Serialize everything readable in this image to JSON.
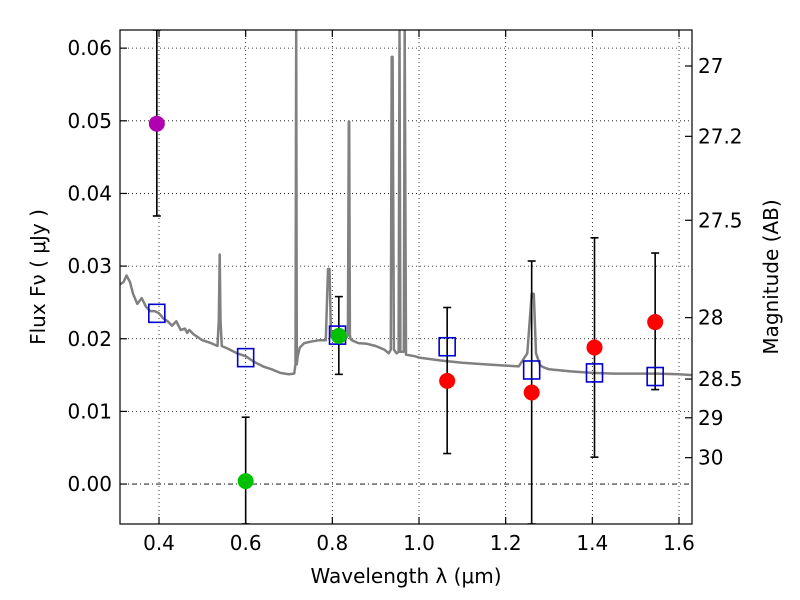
{
  "chart_data": {
    "type": "scatter",
    "xlabel": "Wavelength  λ (μm)",
    "ylabel": "Flux  Fν  ( μJy )",
    "ylabel_right": "Magnitude (AB)",
    "xlim": [
      0.31,
      1.63
    ],
    "ylim": [
      -0.0055,
      0.0625
    ],
    "grid": true,
    "x_ticks": [
      0.4,
      0.6,
      0.8,
      1.0,
      1.2,
      1.4,
      1.6
    ],
    "x_tick_labels": [
      "0.4",
      "0.6",
      "0.8",
      "1.0",
      "1.2",
      "1.4",
      "1.6"
    ],
    "y_ticks": [
      0.0,
      0.01,
      0.02,
      0.03,
      0.04,
      0.05,
      0.06
    ],
    "y_tick_labels": [
      "0.00",
      "0.01",
      "0.02",
      "0.03",
      "0.04",
      "0.05",
      "0.06"
    ],
    "mag_ticks": [
      27,
      27.2,
      27.5,
      28,
      28.5,
      29,
      30
    ],
    "mag_tick_labels": [
      "27",
      "27.2",
      "27.5",
      "28",
      "28.5",
      "29",
      "30"
    ],
    "mag_zero_point": 23.9,
    "colors": {
      "sed": "#808080",
      "magenta": "#b000b0",
      "green": "#00c000",
      "red": "#ff0000",
      "model_box": "#0000d0",
      "errorbar": "#000000",
      "zero_line": "#000000"
    },
    "sed_model": {
      "x": [
        0.31,
        0.318,
        0.325,
        0.333,
        0.34,
        0.35,
        0.36,
        0.37,
        0.38,
        0.39,
        0.4,
        0.41,
        0.42,
        0.43,
        0.44,
        0.45,
        0.46,
        0.465,
        0.47,
        0.48,
        0.5,
        0.52,
        0.535,
        0.538,
        0.54,
        0.542,
        0.545,
        0.56,
        0.58,
        0.6,
        0.62,
        0.64,
        0.66,
        0.68,
        0.7,
        0.712,
        0.715,
        0.7165,
        0.718,
        0.72,
        0.725,
        0.735,
        0.75,
        0.77,
        0.785,
        0.79,
        0.7935,
        0.797,
        0.8,
        0.81,
        0.82,
        0.83,
        0.836,
        0.838,
        0.839,
        0.8405,
        0.842,
        0.845,
        0.86,
        0.88,
        0.9,
        0.92,
        0.93,
        0.935,
        0.937,
        0.939,
        0.942,
        0.948,
        0.953,
        0.955,
        0.957,
        0.965,
        0.967,
        0.97,
        0.99,
        1.0,
        1.05,
        1.1,
        1.15,
        1.2,
        1.23,
        1.25,
        1.26,
        1.265,
        1.27,
        1.28,
        1.29,
        1.3,
        1.35,
        1.4,
        1.45,
        1.5,
        1.55,
        1.6,
        1.63
      ],
      "y": [
        0.0275,
        0.0278,
        0.0287,
        0.0278,
        0.0262,
        0.0248,
        0.0256,
        0.0244,
        0.0238,
        0.0238,
        0.0235,
        0.0228,
        0.0224,
        0.0218,
        0.0224,
        0.0212,
        0.0214,
        0.0208,
        0.0212,
        0.0206,
        0.0198,
        0.0194,
        0.019,
        0.0225,
        0.0316,
        0.0225,
        0.019,
        0.0186,
        0.018,
        0.0176,
        0.0168,
        0.0162,
        0.0158,
        0.0153,
        0.0151,
        0.0152,
        0.0165,
        0.0625,
        0.0165,
        0.0176,
        0.0188,
        0.0194,
        0.0196,
        0.0198,
        0.0198,
        0.0296,
        0.0296,
        0.0203,
        0.0204,
        0.0202,
        0.0201,
        0.0199,
        0.0205,
        0.0499,
        0.0499,
        0.0205,
        0.02,
        0.0198,
        0.0194,
        0.0193,
        0.019,
        0.0185,
        0.018,
        0.0185,
        0.0588,
        0.0588,
        0.0185,
        0.018,
        0.0182,
        0.0625,
        0.0182,
        0.0182,
        0.0625,
        0.0178,
        0.0176,
        0.0174,
        0.017,
        0.0167,
        0.0165,
        0.0163,
        0.0162,
        0.018,
        0.0262,
        0.0262,
        0.018,
        0.0163,
        0.016,
        0.0158,
        0.0155,
        0.0153,
        0.0152,
        0.0152,
        0.0152,
        0.0151,
        0.015
      ]
    },
    "model_points": {
      "x": [
        0.395,
        0.6,
        0.812,
        1.065,
        1.26,
        1.405,
        1.545
      ],
      "y": [
        0.0235,
        0.0174,
        0.0205,
        0.0189,
        0.0157,
        0.0153,
        0.0148
      ]
    },
    "observed_points": [
      {
        "x": 0.395,
        "y": 0.0496,
        "yerr_low": 0.0369,
        "yerr_high": 0.0625,
        "color": "magenta"
      },
      {
        "x": 0.6,
        "y": 0.0004,
        "yerr_low": -0.0055,
        "yerr_high": 0.0092,
        "color": "green"
      },
      {
        "x": 0.815,
        "y": 0.0204,
        "yerr_low": 0.0151,
        "yerr_high": 0.0258,
        "color": "green"
      },
      {
        "x": 1.065,
        "y": 0.0142,
        "yerr_low": 0.0042,
        "yerr_high": 0.0243,
        "color": "red"
      },
      {
        "x": 1.26,
        "y": 0.0126,
        "yerr_low": -0.0055,
        "yerr_high": 0.0307,
        "color": "red"
      },
      {
        "x": 1.405,
        "y": 0.0188,
        "yerr_low": 0.0037,
        "yerr_high": 0.0339,
        "color": "red"
      },
      {
        "x": 1.545,
        "y": 0.0223,
        "yerr_low": 0.013,
        "yerr_high": 0.0318,
        "color": "red"
      }
    ]
  }
}
